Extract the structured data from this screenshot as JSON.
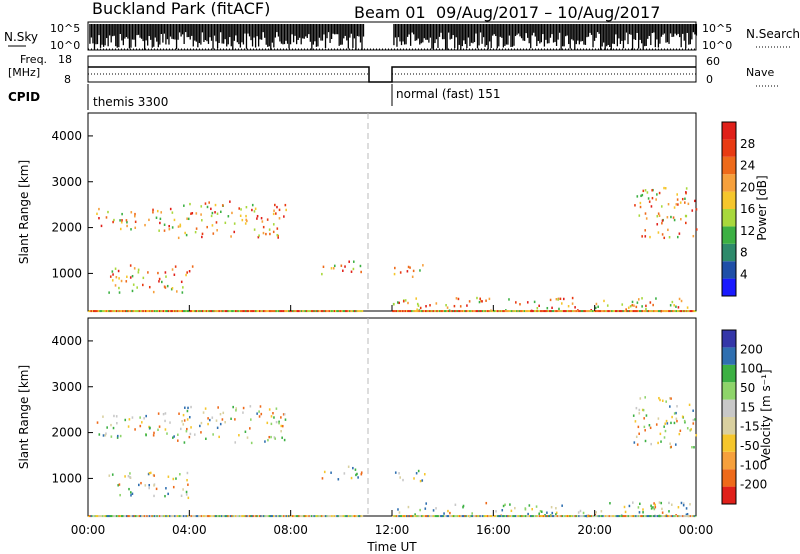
{
  "header": {
    "title": "Buckland Park (fitACF)",
    "beam": "Beam 01",
    "dates": "09/Aug/2017 – 10/Aug/2017"
  },
  "strip": {
    "nsky_label": "N.Sky",
    "nsky_ticks": [
      "10^5",
      "10^0"
    ],
    "nsearch_label": "N.Search",
    "nsearch_ticks": [
      "10^5",
      "10^0"
    ],
    "freq_label_1": "Freq.",
    "freq_label_2": "[MHz]",
    "freq_ticks": [
      "18",
      "8"
    ],
    "nave_label": "Nave",
    "nave_ticks": [
      "60",
      "0"
    ],
    "cpid_label": "CPID",
    "cpid_modes": [
      "themis 3300",
      "normal (fast) 151"
    ]
  },
  "colors": {
    "power": [
      "#1a1aff",
      "#1f4fa8",
      "#2e8a6b",
      "#3cb043",
      "#a8d83c",
      "#f5c62c",
      "#f6a03c",
      "#ee6a1a",
      "#e83a12",
      "#e0201a"
    ],
    "velocity": [
      "#e0201a",
      "#ee6a1a",
      "#f6a03c",
      "#f5c62c",
      "#d9d0a0",
      "#c8c8c8",
      "#8ed46a",
      "#3cb043",
      "#2f6fb0",
      "#3436a8"
    ]
  },
  "chart_data": [
    {
      "type": "heatmap",
      "name": "power",
      "ylabel": "Slant Range [km]",
      "xlabel": "",
      "ylim": [
        180,
        4500
      ],
      "yticks": [
        "1000",
        "2000",
        "3000",
        "4000"
      ],
      "colorbar_label": "Power [dB]",
      "colorbar_ticks": [
        "4",
        "8",
        "12",
        "16",
        "20",
        "24",
        "28"
      ],
      "scatter_regions": [
        {
          "t": [
            0.3,
            3.5
          ],
          "r": [
            1950,
            2450
          ],
          "value": "20-28 dB"
        },
        {
          "t": [
            3.5,
            7.8
          ],
          "r": [
            1800,
            2600
          ],
          "value": "12-28 dB"
        },
        {
          "t": [
            0.8,
            4.2
          ],
          "r": [
            600,
            1200
          ],
          "value": "16-28 dB"
        },
        {
          "t": [
            9.0,
            10.8
          ],
          "r": [
            1000,
            1300
          ],
          "value": "8-12 dB"
        },
        {
          "t": [
            12.0,
            13.3
          ],
          "r": [
            950,
            1250
          ],
          "value": "12-16 dB"
        },
        {
          "t": [
            12.0,
            24.0
          ],
          "r": [
            200,
            500
          ],
          "value": "8-20 dB"
        },
        {
          "t": [
            21.5,
            24.0
          ],
          "r": [
            1800,
            2900
          ],
          "value": "12-28 dB"
        }
      ]
    },
    {
      "type": "heatmap",
      "name": "velocity",
      "ylabel": "Slant Range [km]",
      "xlabel": "Time UT",
      "ylim": [
        180,
        4500
      ],
      "yticks": [
        "1000",
        "2000",
        "3000",
        "4000"
      ],
      "xticks": [
        "00:00",
        "04:00",
        "08:00",
        "12:00",
        "16:00",
        "20:00",
        "00:00"
      ],
      "colorbar_label": "Velocity [m s⁻¹]",
      "colorbar_ticks": [
        "200",
        "100",
        "50",
        "15",
        "-15",
        "-50",
        "-100",
        "-200"
      ],
      "scatter_regions": [
        {
          "t": [
            0.3,
            3.5
          ],
          "r": [
            1900,
            2450
          ],
          "value": "-15 to 15 m/s"
        },
        {
          "t": [
            3.5,
            7.8
          ],
          "r": [
            1800,
            2600
          ],
          "value": "-15 to 15 m/s"
        },
        {
          "t": [
            0.8,
            4.0
          ],
          "r": [
            600,
            1150
          ],
          "value": "-15 to 15 m/s"
        },
        {
          "t": [
            9.0,
            10.8
          ],
          "r": [
            1000,
            1300
          ],
          "value": "-50 to 50 m/s"
        },
        {
          "t": [
            12.0,
            13.3
          ],
          "r": [
            950,
            1250
          ],
          "value": "15 to 50 m/s"
        },
        {
          "t": [
            12.0,
            24.0
          ],
          "r": [
            200,
            500
          ],
          "value": "-100 to 50 m/s"
        },
        {
          "t": [
            21.5,
            24.0
          ],
          "r": [
            1700,
            2800
          ],
          "value": "-200 to 200 m/s"
        }
      ]
    }
  ]
}
